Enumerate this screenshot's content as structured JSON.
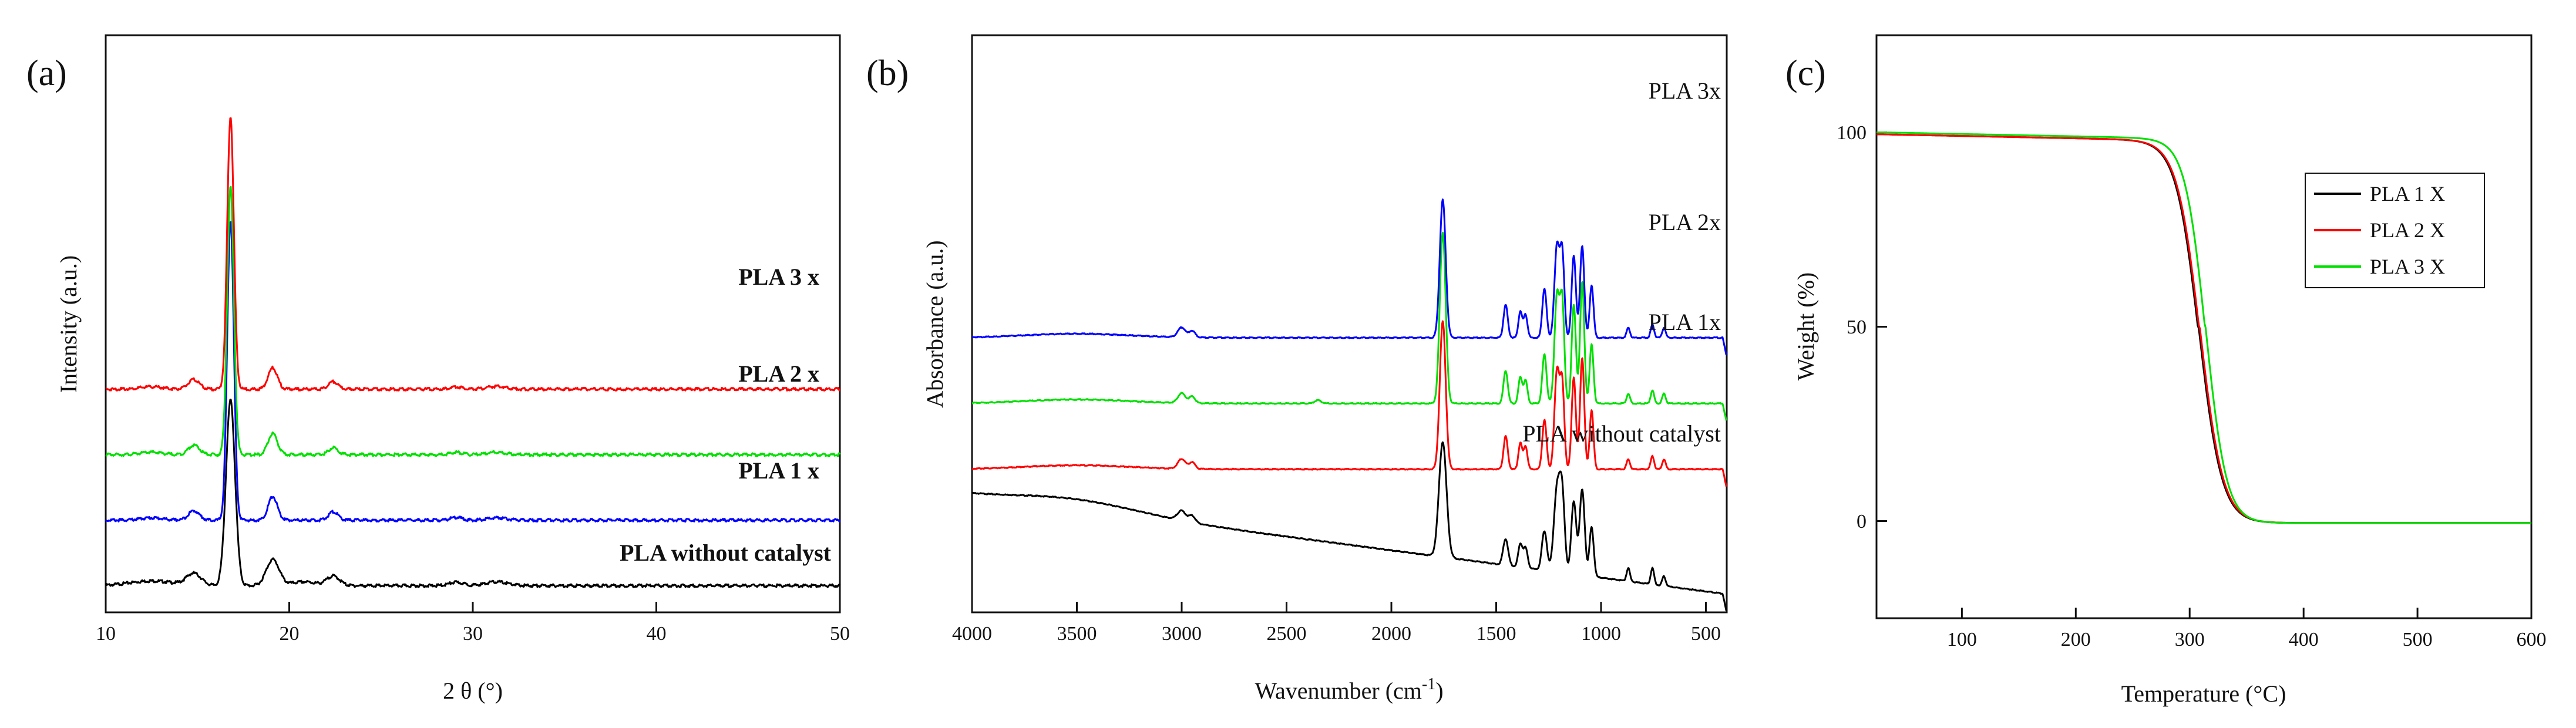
{
  "chart_data": [
    {
      "panel": "(a)",
      "type": "line",
      "xlabel": "2 θ (°)",
      "ylabel": "Intensity (a.u.)",
      "xlim": [
        10,
        50
      ],
      "xticks": [
        "10",
        "20",
        "30",
        "40",
        "50"
      ],
      "yticks_labeled": false,
      "series": [
        {
          "name": "PLA without catalyst",
          "color": "#000000",
          "baseline_au": 0.02,
          "amplitude": 1.0,
          "peaks": [
            [
              14.8,
              0.25,
              0.4
            ],
            [
              16.8,
              0.07,
              0.15
            ],
            [
              16.8,
              1.0,
              0.25
            ],
            [
              19.1,
              0.55,
              0.35
            ],
            [
              22.4,
              0.2,
              0.35
            ],
            [
              29.1,
              0.07,
              0.4
            ],
            [
              31.3,
              0.08,
              0.6
            ],
            [
              20.8,
              0.08,
              0.7
            ],
            [
              12.5,
              0.1,
              1.2
            ]
          ]
        },
        {
          "name": "PLA 1 x",
          "color": "#0000ff",
          "baseline_au": 0.2,
          "amplitude": 1.0,
          "peaks": [
            [
              14.8,
              0.2,
              0.3
            ],
            [
              16.8,
              1.65,
              0.18
            ],
            [
              19.1,
              0.5,
              0.25
            ],
            [
              22.4,
              0.18,
              0.25
            ],
            [
              29.1,
              0.06,
              0.3
            ],
            [
              31.3,
              0.05,
              0.5
            ],
            [
              12.5,
              0.05,
              0.6
            ]
          ]
        },
        {
          "name": "PLA 2 x",
          "color": "#00e000",
          "baseline_au": 0.38,
          "amplitude": 1.0,
          "peaks": [
            [
              14.8,
              0.2,
              0.3
            ],
            [
              16.8,
              1.47,
              0.18
            ],
            [
              19.1,
              0.45,
              0.25
            ],
            [
              22.4,
              0.15,
              0.25
            ],
            [
              29.1,
              0.05,
              0.3
            ],
            [
              31.3,
              0.05,
              0.5
            ],
            [
              12.5,
              0.05,
              0.6
            ]
          ]
        },
        {
          "name": "PLA 3 x",
          "color": "#ff0000",
          "baseline_au": 0.56,
          "amplitude": 1.0,
          "peaks": [
            [
              14.8,
              0.2,
              0.3
            ],
            [
              16.8,
              1.5,
              0.18
            ],
            [
              19.1,
              0.45,
              0.25
            ],
            [
              22.4,
              0.16,
              0.25
            ],
            [
              29.1,
              0.05,
              0.3
            ],
            [
              31.3,
              0.06,
              0.5
            ],
            [
              12.5,
              0.05,
              0.6
            ]
          ]
        }
      ],
      "labels": [
        "PLA 3 x",
        "PLA 2 x",
        "PLA 1 x",
        "PLA without catalyst"
      ]
    },
    {
      "panel": "(b)",
      "type": "line",
      "xlabel": "Wavenumber (cm",
      "xlabel_sup": "-1",
      "xlabel_end": ")",
      "ylabel": "Absorbance (a.u.)",
      "xlim": [
        4000,
        400
      ],
      "xticks": [
        "4000",
        "3500",
        "3000",
        "2500",
        "2000",
        "1500",
        "1000",
        "500"
      ],
      "yticks_labeled": false,
      "series": [
        {
          "name": "PLA without catalyst",
          "color": "#000000",
          "offset_au": 0.05,
          "tilt": 0.3,
          "peaks": [
            [
              1755,
              0.35,
              18
            ],
            [
              1455,
              0.08,
              12
            ],
            [
              1385,
              0.07,
              10
            ],
            [
              1360,
              0.06,
              10
            ],
            [
              1270,
              0.12,
              12
            ],
            [
              1210,
              0.25,
              15
            ],
            [
              1185,
              0.22,
              12
            ],
            [
              1130,
              0.22,
              12
            ],
            [
              1090,
              0.26,
              12
            ],
            [
              1045,
              0.15,
              10
            ],
            [
              870,
              0.04,
              8
            ],
            [
              755,
              0.05,
              8
            ],
            [
              700,
              0.03,
              8
            ],
            [
              3000,
              0.03,
              20
            ],
            [
              2950,
              0.02,
              15
            ]
          ]
        },
        {
          "name": "PLA 1x",
          "color": "#ff0000",
          "offset_au": 0.43,
          "tilt": 0.0,
          "peaks": [
            [
              1755,
              0.45,
              14
            ],
            [
              1455,
              0.1,
              10
            ],
            [
              1385,
              0.08,
              9
            ],
            [
              1360,
              0.07,
              9
            ],
            [
              1270,
              0.15,
              10
            ],
            [
              1210,
              0.3,
              12
            ],
            [
              1185,
              0.25,
              10
            ],
            [
              1130,
              0.28,
              10
            ],
            [
              1090,
              0.34,
              10
            ],
            [
              1045,
              0.18,
              9
            ],
            [
              870,
              0.03,
              8
            ],
            [
              755,
              0.04,
              8
            ],
            [
              700,
              0.03,
              8
            ],
            [
              3000,
              0.03,
              18
            ],
            [
              2950,
              0.02,
              14
            ]
          ]
        },
        {
          "name": "PLA 2x",
          "color": "#00e000",
          "offset_au": 0.63,
          "tilt": 0.0,
          "peaks": [
            [
              1755,
              0.52,
              14
            ],
            [
              1455,
              0.1,
              10
            ],
            [
              1385,
              0.08,
              9
            ],
            [
              1360,
              0.07,
              9
            ],
            [
              1270,
              0.15,
              10
            ],
            [
              1210,
              0.33,
              12
            ],
            [
              1185,
              0.3,
              10
            ],
            [
              1130,
              0.3,
              10
            ],
            [
              1090,
              0.37,
              10
            ],
            [
              1045,
              0.18,
              9
            ],
            [
              870,
              0.03,
              8
            ],
            [
              755,
              0.04,
              8
            ],
            [
              700,
              0.03,
              8
            ],
            [
              3000,
              0.03,
              18
            ],
            [
              2950,
              0.02,
              14
            ],
            [
              2350,
              0.01,
              15
            ]
          ]
        },
        {
          "name": "PLA 3x",
          "color": "#0000ff",
          "offset_au": 0.83,
          "tilt": 0.0,
          "peaks": [
            [
              1755,
              0.42,
              14
            ],
            [
              1455,
              0.1,
              10
            ],
            [
              1385,
              0.08,
              9
            ],
            [
              1360,
              0.07,
              9
            ],
            [
              1270,
              0.15,
              10
            ],
            [
              1210,
              0.28,
              12
            ],
            [
              1185,
              0.25,
              10
            ],
            [
              1130,
              0.25,
              10
            ],
            [
              1090,
              0.28,
              10
            ],
            [
              1045,
              0.16,
              9
            ],
            [
              870,
              0.03,
              8
            ],
            [
              755,
              0.04,
              8
            ],
            [
              700,
              0.03,
              8
            ],
            [
              3000,
              0.03,
              18
            ],
            [
              2950,
              0.02,
              14
            ]
          ]
        }
      ],
      "labels": [
        "PLA 3x",
        "PLA 2x",
        "PLA 1x",
        "PLA without catalyst"
      ]
    },
    {
      "panel": "(c)",
      "type": "line",
      "xlabel": "Temperature (°C)",
      "ylabel": "Weight (%)",
      "xlim": [
        25,
        600
      ],
      "ylim": [
        -25,
        125
      ],
      "xticks": [
        "100",
        "200",
        "300",
        "400",
        "500",
        "600"
      ],
      "yticks": [
        "0",
        "50",
        "100"
      ],
      "series": [
        {
          "name": "PLA 1 X",
          "color": "#000000",
          "start": 99.5,
          "mid": 308,
          "width": 10,
          "end": -0.5
        },
        {
          "name": "PLA 2 X",
          "color": "#ff0000",
          "start": 99.5,
          "mid": 309,
          "width": 10,
          "end": -0.5
        },
        {
          "name": "PLA 3 X",
          "color": "#00e000",
          "start": 100.0,
          "mid": 314,
          "width": 9,
          "end": -0.5
        }
      ],
      "legend": [
        "PLA 1 X",
        "PLA 2 X",
        "PLA 3 X"
      ],
      "legend_position": "upper-right"
    }
  ]
}
